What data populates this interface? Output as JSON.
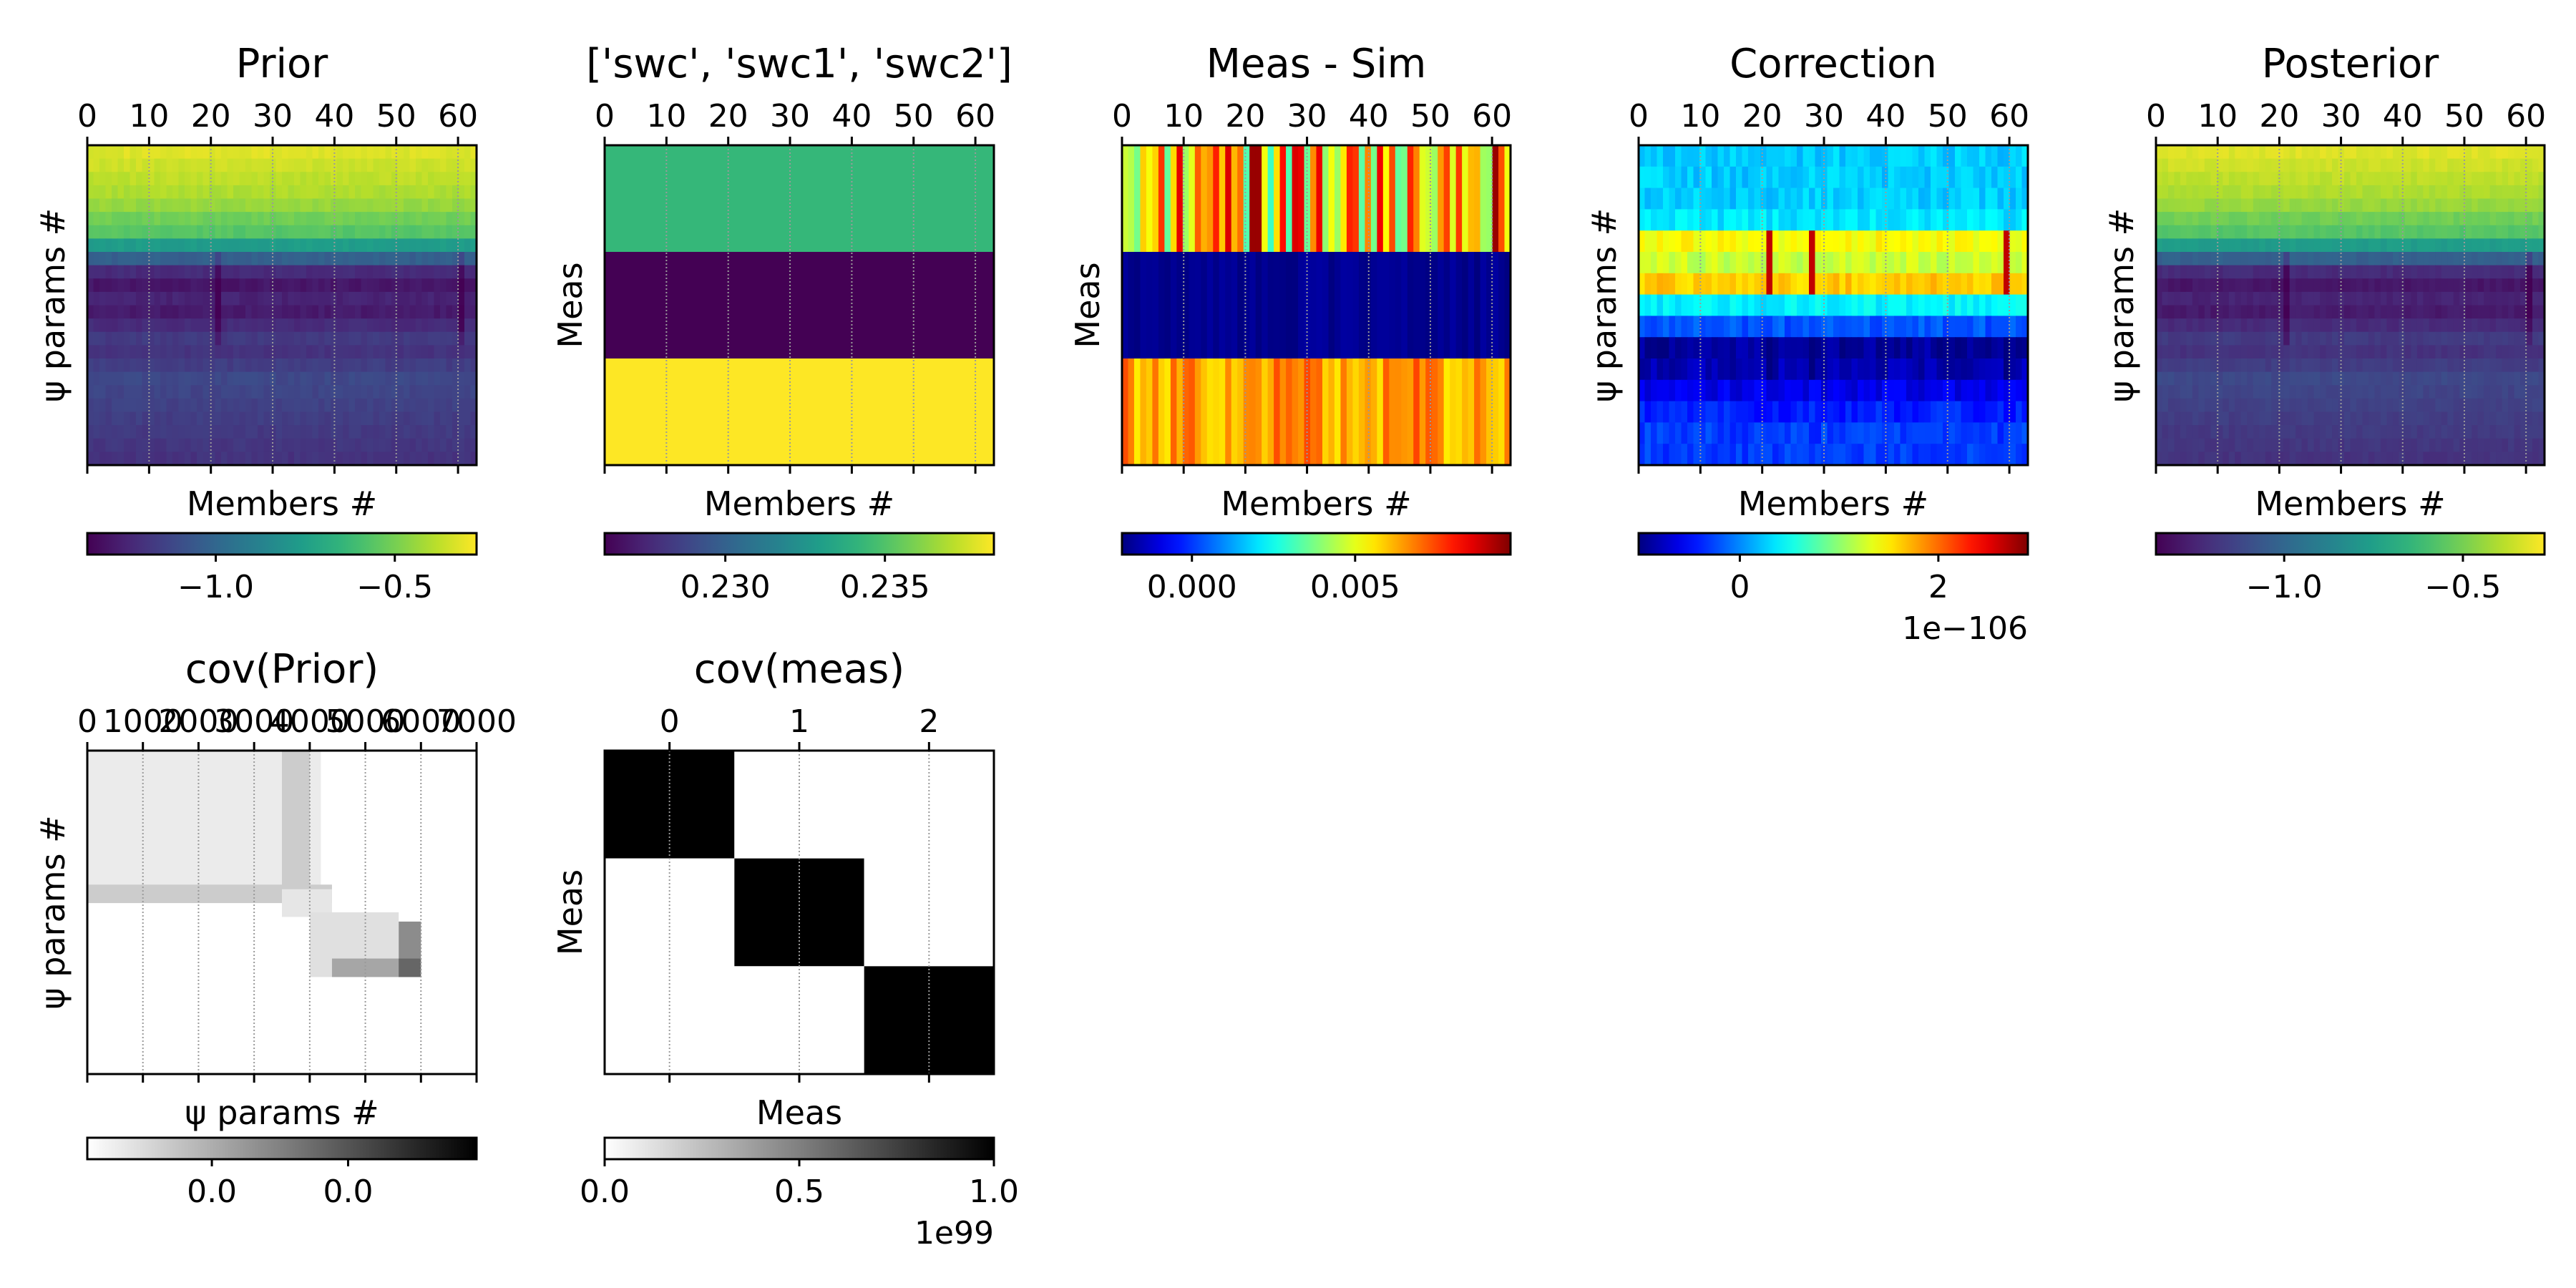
{
  "figure": "ensemble-assimilation-diagnostics",
  "panels": [
    {
      "id": "prior",
      "title": "Prior",
      "ylabel": "ψ params #",
      "xlabel": "Members #",
      "xticks": [
        "0",
        "10",
        "20",
        "30",
        "40",
        "50",
        "60"
      ],
      "cmap": "viridis",
      "colorbar_ticks": [
        "−1.0",
        "−0.5"
      ],
      "colorbar_exp": "",
      "chart_data": {
        "type": "heatmap",
        "x_range": [
          0,
          63
        ],
        "value_range": [
          -1.2,
          -0.38
        ],
        "rows": 24,
        "row_profile": [
          -0.42,
          -0.44,
          -0.46,
          -0.48,
          -0.51,
          -0.56,
          -0.6,
          -0.75,
          -0.95,
          -1.1,
          -1.15,
          -1.12,
          -1.14,
          -1.1,
          -1.06,
          -1.08,
          -1.05,
          -1.02,
          -1.03,
          -1.04,
          -1.05,
          -1.06,
          -1.07,
          -1.08
        ],
        "darker_columns": [
          21,
          61
        ]
      }
    },
    {
      "id": "obs",
      "title": "['swc', 'swc1', 'swc2']",
      "ylabel": "Meas",
      "xlabel": "Members #",
      "xticks": [
        "0",
        "10",
        "20",
        "30",
        "40",
        "50",
        "60"
      ],
      "cmap": "viridis",
      "colorbar_ticks": [
        "0.230",
        "0.235"
      ],
      "colorbar_exp": "",
      "chart_data": {
        "type": "heatmap",
        "x_range": [
          0,
          63
        ],
        "value_range": [
          0.2265,
          0.2385
        ],
        "rows": 3,
        "row_values": [
          0.2345,
          0.2265,
          0.2385
        ]
      }
    },
    {
      "id": "innov",
      "title": "Meas - Sim",
      "ylabel": "Meas",
      "xlabel": "Members #",
      "xticks": [
        "0",
        "10",
        "20",
        "30",
        "40",
        "50",
        "60"
      ],
      "cmap": "jet",
      "colorbar_ticks": [
        "0.000",
        "0.005"
      ],
      "colorbar_exp": "",
      "chart_data": {
        "type": "heatmap",
        "x_range": [
          0,
          63
        ],
        "value_range": [
          -0.0022,
          0.0098
        ],
        "rows": 3,
        "row_base": [
          0.006,
          -0.002,
          0.0065
        ],
        "row_spread": [
          0.003,
          0.0002,
          0.001
        ]
      }
    },
    {
      "id": "correction",
      "title": "Correction",
      "ylabel": "ψ params #",
      "xlabel": "Members #",
      "xticks": [
        "0",
        "10",
        "20",
        "30",
        "40",
        "50",
        "60"
      ],
      "cmap": "jet",
      "colorbar_ticks": [
        "0",
        "2"
      ],
      "colorbar_exp": "1e−106",
      "chart_data": {
        "type": "heatmap",
        "x_range": [
          0,
          63
        ],
        "value_range": [
          -1.0,
          2.85
        ],
        "rows": 15,
        "row_profile": [
          0.25,
          0.25,
          0.25,
          0.35,
          1.4,
          1.2,
          1.6,
          0.4,
          -0.2,
          -0.9,
          -0.8,
          -0.6,
          -0.4,
          -0.3,
          -0.3
        ],
        "hot_columns": [
          21,
          28,
          60
        ]
      }
    },
    {
      "id": "posterior",
      "title": "Posterior",
      "ylabel": "ψ params #",
      "xlabel": "Members #",
      "xticks": [
        "0",
        "10",
        "20",
        "30",
        "40",
        "50",
        "60"
      ],
      "cmap": "viridis",
      "colorbar_ticks": [
        "−1.0",
        "−0.5"
      ],
      "colorbar_exp": "",
      "chart_data": {
        "type": "heatmap",
        "x_range": [
          0,
          63
        ],
        "value_range": [
          -1.2,
          -0.38
        ],
        "rows": 24,
        "row_profile": [
          -0.42,
          -0.44,
          -0.46,
          -0.48,
          -0.51,
          -0.56,
          -0.6,
          -0.75,
          -0.95,
          -1.1,
          -1.15,
          -1.12,
          -1.14,
          -1.1,
          -1.06,
          -1.08,
          -1.05,
          -1.02,
          -1.03,
          -1.04,
          -1.05,
          -1.06,
          -1.07,
          -1.08
        ],
        "darker_columns": [
          21,
          61
        ]
      }
    },
    {
      "id": "cov_prior",
      "title": "cov(Prior)",
      "ylabel": "ψ params #",
      "xlabel": "ψ params #",
      "xticks": [
        "0",
        "1000",
        "2000",
        "3000",
        "4000",
        "5000",
        "6000",
        "7000"
      ],
      "cmap": "gray_r",
      "colorbar_ticks": [
        "0.0",
        "0.0"
      ],
      "colorbar_exp": "",
      "chart_data": {
        "type": "heatmap",
        "x_range": [
          0,
          7000
        ],
        "description_blocks": [
          {
            "x": [
              0,
              4200
            ],
            "y": [
              0,
              3200
            ],
            "value": 0.08
          },
          {
            "x": [
              3500,
              4000
            ],
            "y": [
              0,
              3200
            ],
            "value": 0.2
          },
          {
            "x": [
              0,
              4400
            ],
            "y": [
              2900,
              3300
            ],
            "value": 0.2
          },
          {
            "x": [
              3500,
              4400
            ],
            "y": [
              3000,
              3600
            ],
            "value": 0.1
          },
          {
            "x": [
              4000,
              5600
            ],
            "y": [
              3500,
              4900
            ],
            "value": 0.12
          },
          {
            "x": [
              5600,
              6000
            ],
            "y": [
              3700,
              4900
            ],
            "value": 0.45
          },
          {
            "x": [
              4400,
              6000
            ],
            "y": [
              4500,
              4900
            ],
            "value": 0.35
          },
          {
            "x": [
              5600,
              6000
            ],
            "y": [
              4500,
              4900
            ],
            "value": 0.6
          }
        ]
      }
    },
    {
      "id": "cov_meas",
      "title": "cov(meas)",
      "ylabel": "Meas",
      "xlabel": "Meas",
      "xticks": [
        "0",
        "1",
        "2"
      ],
      "cmap": "gray_r",
      "colorbar_ticks": [
        "0.0",
        "0.5",
        "1.0"
      ],
      "colorbar_exp": "1e99",
      "chart_data": {
        "type": "heatmap",
        "x_range": [
          -0.5,
          2.5
        ],
        "matrix": [
          [
            1,
            0,
            0
          ],
          [
            0,
            1,
            0
          ],
          [
            0,
            0,
            1
          ]
        ]
      }
    }
  ]
}
